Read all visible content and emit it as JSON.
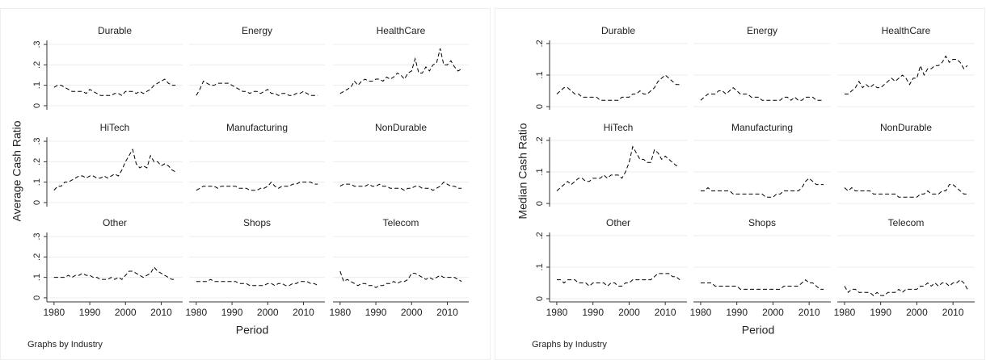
{
  "chart_data": [
    {
      "type": "line",
      "ylabel": "Average Cash Ratio",
      "xlabel": "Period",
      "note": "Graphs by Industry",
      "x": [
        1980,
        1981,
        1982,
        1983,
        1984,
        1985,
        1986,
        1987,
        1988,
        1989,
        1990,
        1991,
        1992,
        1993,
        1994,
        1995,
        1996,
        1997,
        1998,
        1999,
        2000,
        2001,
        2002,
        2003,
        2004,
        2005,
        2006,
        2007,
        2008,
        2009,
        2010,
        2011,
        2012,
        2013,
        2014
      ],
      "xlim": [
        1978,
        2016
      ],
      "xticks": [
        1980,
        1990,
        2000,
        2010
      ],
      "ylim": [
        -0.02,
        0.32
      ],
      "yticks": [
        {
          "value": 0,
          "label": "0"
        },
        {
          "value": 0.1,
          "label": ".1"
        },
        {
          "value": 0.2,
          "label": ".2"
        },
        {
          "value": 0.3,
          "label": ".3"
        }
      ],
      "grid": true,
      "color": "#000000",
      "panels": [
        {
          "title": "Durable",
          "values": [
            0.09,
            0.1,
            0.1,
            0.09,
            0.08,
            0.07,
            0.07,
            0.07,
            0.07,
            0.06,
            0.08,
            0.07,
            0.06,
            0.05,
            0.05,
            0.05,
            0.05,
            0.06,
            0.06,
            0.05,
            0.07,
            0.07,
            0.07,
            0.06,
            0.07,
            0.06,
            0.07,
            0.08,
            0.1,
            0.11,
            0.12,
            0.13,
            0.11,
            0.1,
            0.1
          ]
        },
        {
          "title": "Energy",
          "values": [
            0.05,
            0.08,
            0.12,
            0.11,
            0.1,
            0.1,
            0.11,
            0.11,
            0.11,
            0.11,
            0.1,
            0.09,
            0.08,
            0.07,
            0.07,
            0.06,
            0.07,
            0.07,
            0.06,
            0.07,
            0.08,
            0.06,
            0.06,
            0.05,
            0.06,
            0.06,
            0.05,
            0.05,
            0.06,
            0.06,
            0.07,
            0.06,
            0.05,
            0.05,
            0.05
          ]
        },
        {
          "title": "HealthCare",
          "values": [
            0.06,
            0.07,
            0.08,
            0.09,
            0.12,
            0.1,
            0.12,
            0.13,
            0.12,
            0.12,
            0.13,
            0.13,
            0.12,
            0.14,
            0.13,
            0.14,
            0.16,
            0.15,
            0.13,
            0.16,
            0.17,
            0.23,
            0.16,
            0.16,
            0.19,
            0.17,
            0.2,
            0.21,
            0.28,
            0.2,
            0.2,
            0.22,
            0.19,
            0.17,
            0.18
          ]
        },
        {
          "title": "HiTech",
          "values": [
            0.06,
            0.08,
            0.08,
            0.1,
            0.1,
            0.11,
            0.12,
            0.13,
            0.13,
            0.12,
            0.13,
            0.13,
            0.12,
            0.12,
            0.13,
            0.12,
            0.13,
            0.14,
            0.13,
            0.16,
            0.2,
            0.23,
            0.26,
            0.19,
            0.17,
            0.18,
            0.17,
            0.23,
            0.2,
            0.2,
            0.18,
            0.19,
            0.18,
            0.16,
            0.15
          ]
        },
        {
          "title": "Manufacturing",
          "values": [
            0.06,
            0.07,
            0.08,
            0.08,
            0.08,
            0.08,
            0.07,
            0.08,
            0.08,
            0.08,
            0.08,
            0.08,
            0.07,
            0.07,
            0.07,
            0.06,
            0.06,
            0.06,
            0.07,
            0.07,
            0.08,
            0.1,
            0.08,
            0.07,
            0.08,
            0.08,
            0.08,
            0.09,
            0.09,
            0.1,
            0.1,
            0.1,
            0.1,
            0.09,
            0.09
          ]
        },
        {
          "title": "NonDurable",
          "values": [
            0.08,
            0.09,
            0.09,
            0.09,
            0.08,
            0.08,
            0.08,
            0.08,
            0.09,
            0.08,
            0.08,
            0.09,
            0.08,
            0.08,
            0.07,
            0.07,
            0.07,
            0.07,
            0.06,
            0.07,
            0.07,
            0.08,
            0.08,
            0.07,
            0.07,
            0.07,
            0.06,
            0.07,
            0.08,
            0.1,
            0.09,
            0.08,
            0.08,
            0.07,
            0.07
          ]
        },
        {
          "title": "Other",
          "values": [
            0.1,
            0.1,
            0.1,
            0.1,
            0.11,
            0.1,
            0.11,
            0.11,
            0.12,
            0.11,
            0.11,
            0.1,
            0.1,
            0.09,
            0.09,
            0.09,
            0.1,
            0.09,
            0.1,
            0.09,
            0.11,
            0.13,
            0.13,
            0.12,
            0.11,
            0.1,
            0.11,
            0.12,
            0.15,
            0.13,
            0.12,
            0.11,
            0.1,
            0.09,
            0.09
          ]
        },
        {
          "title": "Shops",
          "values": [
            0.08,
            0.08,
            0.08,
            0.08,
            0.09,
            0.08,
            0.08,
            0.08,
            0.08,
            0.08,
            0.08,
            0.08,
            0.07,
            0.07,
            0.07,
            0.06,
            0.06,
            0.06,
            0.06,
            0.06,
            0.07,
            0.07,
            0.06,
            0.07,
            0.07,
            0.06,
            0.06,
            0.07,
            0.07,
            0.08,
            0.08,
            0.08,
            0.07,
            0.07,
            0.06
          ]
        },
        {
          "title": "Telecom",
          "values": [
            0.13,
            0.08,
            0.09,
            0.08,
            0.07,
            0.06,
            0.07,
            0.07,
            0.06,
            0.06,
            0.05,
            0.06,
            0.06,
            0.07,
            0.07,
            0.08,
            0.07,
            0.08,
            0.08,
            0.09,
            0.12,
            0.12,
            0.11,
            0.1,
            0.09,
            0.1,
            0.09,
            0.1,
            0.11,
            0.1,
            0.1,
            0.1,
            0.1,
            0.09,
            0.08
          ]
        }
      ]
    },
    {
      "type": "line",
      "ylabel": "Median Cash Ratio",
      "xlabel": "Period",
      "note": "Graphs by Industry",
      "x": [
        1980,
        1981,
        1982,
        1983,
        1984,
        1985,
        1986,
        1987,
        1988,
        1989,
        1990,
        1991,
        1992,
        1993,
        1994,
        1995,
        1996,
        1997,
        1998,
        1999,
        2000,
        2001,
        2002,
        2003,
        2004,
        2005,
        2006,
        2007,
        2008,
        2009,
        2010,
        2011,
        2012,
        2013,
        2014
      ],
      "xlim": [
        1978,
        2016
      ],
      "xticks": [
        1980,
        1990,
        2000,
        2010
      ],
      "ylim": [
        -0.01,
        0.21
      ],
      "yticks": [
        {
          "value": 0,
          "label": "0"
        },
        {
          "value": 0.1,
          "label": ".1"
        },
        {
          "value": 0.2,
          "label": ".2"
        }
      ],
      "grid": true,
      "color": "#000000",
      "panels": [
        {
          "title": "Durable",
          "values": [
            0.04,
            0.05,
            0.06,
            0.06,
            0.05,
            0.04,
            0.04,
            0.03,
            0.03,
            0.03,
            0.03,
            0.03,
            0.02,
            0.02,
            0.02,
            0.02,
            0.02,
            0.02,
            0.03,
            0.03,
            0.03,
            0.04,
            0.04,
            0.05,
            0.04,
            0.04,
            0.05,
            0.06,
            0.08,
            0.09,
            0.1,
            0.09,
            0.08,
            0.07,
            0.07
          ]
        },
        {
          "title": "Energy",
          "values": [
            0.02,
            0.03,
            0.04,
            0.04,
            0.04,
            0.05,
            0.05,
            0.04,
            0.05,
            0.06,
            0.05,
            0.04,
            0.04,
            0.04,
            0.03,
            0.03,
            0.03,
            0.02,
            0.02,
            0.02,
            0.02,
            0.02,
            0.02,
            0.03,
            0.03,
            0.02,
            0.03,
            0.02,
            0.02,
            0.03,
            0.03,
            0.03,
            0.02,
            0.02,
            0.02
          ]
        },
        {
          "title": "HealthCare",
          "values": [
            0.04,
            0.04,
            0.05,
            0.06,
            0.08,
            0.06,
            0.07,
            0.06,
            0.07,
            0.06,
            0.06,
            0.07,
            0.08,
            0.09,
            0.08,
            0.09,
            0.1,
            0.09,
            0.07,
            0.09,
            0.09,
            0.13,
            0.1,
            0.12,
            0.12,
            0.13,
            0.13,
            0.14,
            0.16,
            0.14,
            0.15,
            0.15,
            0.14,
            0.12,
            0.13
          ]
        },
        {
          "title": "HiTech",
          "values": [
            0.04,
            0.05,
            0.06,
            0.07,
            0.06,
            0.07,
            0.08,
            0.08,
            0.07,
            0.07,
            0.08,
            0.08,
            0.08,
            0.09,
            0.08,
            0.09,
            0.09,
            0.09,
            0.08,
            0.1,
            0.13,
            0.18,
            0.16,
            0.14,
            0.14,
            0.13,
            0.13,
            0.17,
            0.16,
            0.14,
            0.15,
            0.14,
            0.13,
            0.12,
            0.12
          ]
        },
        {
          "title": "Manufacturing",
          "values": [
            0.04,
            0.04,
            0.05,
            0.04,
            0.04,
            0.04,
            0.04,
            0.04,
            0.04,
            0.03,
            0.03,
            0.03,
            0.03,
            0.03,
            0.03,
            0.03,
            0.03,
            0.03,
            0.02,
            0.02,
            0.02,
            0.03,
            0.03,
            0.04,
            0.04,
            0.04,
            0.04,
            0.04,
            0.05,
            0.07,
            0.08,
            0.07,
            0.06,
            0.06,
            0.06
          ]
        },
        {
          "title": "NonDurable",
          "values": [
            0.05,
            0.04,
            0.05,
            0.04,
            0.04,
            0.04,
            0.04,
            0.04,
            0.03,
            0.03,
            0.03,
            0.03,
            0.03,
            0.03,
            0.03,
            0.02,
            0.02,
            0.02,
            0.02,
            0.02,
            0.02,
            0.03,
            0.03,
            0.04,
            0.03,
            0.03,
            0.03,
            0.04,
            0.04,
            0.06,
            0.06,
            0.05,
            0.04,
            0.03,
            0.03
          ]
        },
        {
          "title": "Other",
          "values": [
            0.06,
            0.06,
            0.05,
            0.06,
            0.06,
            0.06,
            0.05,
            0.05,
            0.05,
            0.04,
            0.05,
            0.05,
            0.05,
            0.05,
            0.04,
            0.05,
            0.05,
            0.04,
            0.04,
            0.05,
            0.05,
            0.06,
            0.06,
            0.06,
            0.06,
            0.06,
            0.06,
            0.07,
            0.08,
            0.08,
            0.08,
            0.08,
            0.07,
            0.07,
            0.06
          ]
        },
        {
          "title": "Shops",
          "values": [
            0.05,
            0.05,
            0.05,
            0.05,
            0.04,
            0.04,
            0.04,
            0.04,
            0.04,
            0.04,
            0.04,
            0.03,
            0.03,
            0.03,
            0.03,
            0.03,
            0.03,
            0.03,
            0.03,
            0.03,
            0.03,
            0.03,
            0.03,
            0.04,
            0.04,
            0.04,
            0.04,
            0.04,
            0.05,
            0.06,
            0.05,
            0.05,
            0.04,
            0.03,
            0.03
          ]
        },
        {
          "title": "Telecom",
          "values": [
            0.04,
            0.02,
            0.03,
            0.03,
            0.02,
            0.02,
            0.02,
            0.02,
            0.01,
            0.02,
            0.01,
            0.01,
            0.02,
            0.02,
            0.02,
            0.03,
            0.02,
            0.03,
            0.03,
            0.03,
            0.03,
            0.04,
            0.04,
            0.05,
            0.04,
            0.05,
            0.04,
            0.05,
            0.05,
            0.04,
            0.05,
            0.05,
            0.06,
            0.05,
            0.03
          ]
        }
      ]
    }
  ]
}
